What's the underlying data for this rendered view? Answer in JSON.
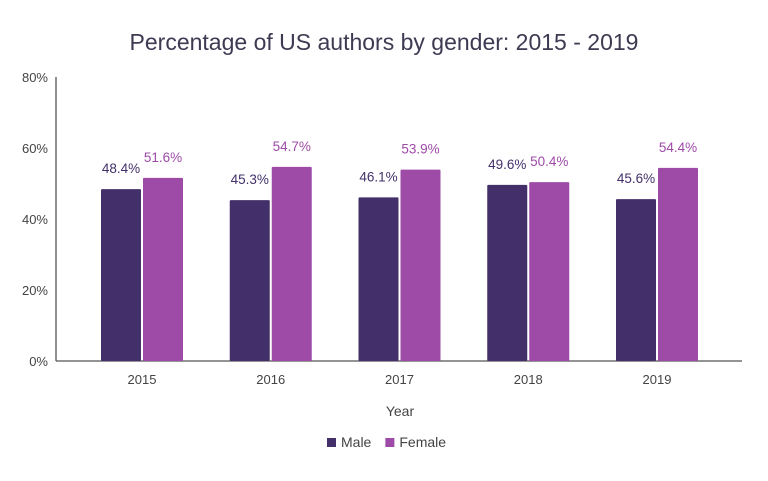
{
  "chart_data": {
    "type": "bar",
    "title": "Percentage of US authors by gender: 2015 - 2019",
    "xlabel": "Year",
    "ylabel": "",
    "categories": [
      "2015",
      "2016",
      "2017",
      "2018",
      "2019"
    ],
    "series": [
      {
        "name": "Male",
        "values": [
          48.4,
          45.3,
          46.1,
          49.6,
          45.6
        ],
        "labels": [
          "48.4%",
          "45.3%",
          "46.1%",
          "49.6%",
          "45.6%"
        ],
        "color": "#43306a"
      },
      {
        "name": "Female",
        "values": [
          51.6,
          54.7,
          53.9,
          50.4,
          54.4
        ],
        "labels": [
          "51.6%",
          "54.7%",
          "53.9%",
          "50.4%",
          "54.4%"
        ],
        "color": "#9e4ba8"
      }
    ],
    "ylim": [
      0,
      80
    ],
    "yticks": [
      "0%",
      "20%",
      "40%",
      "60%",
      "80%"
    ],
    "grid": false,
    "legend": "bottom"
  }
}
